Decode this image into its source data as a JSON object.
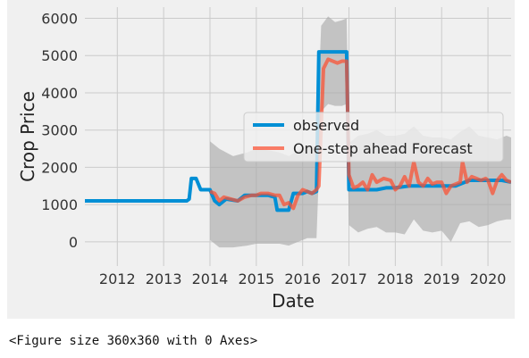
{
  "caption": "<Figure size 360x360 with 0 Axes>",
  "chart_data": {
    "type": "line",
    "title": "",
    "xlabel": "Date",
    "ylabel": "Crop Price",
    "xlim": [
      2011.3,
      2020.5
    ],
    "ylim": [
      -650,
      6300
    ],
    "x_ticks": [
      2012,
      2013,
      2014,
      2015,
      2016,
      2017,
      2018,
      2019,
      2020
    ],
    "x_tick_labels": [
      "2012",
      "2013",
      "2014",
      "2015",
      "2016",
      "2017",
      "2018",
      "2019",
      "2020"
    ],
    "y_ticks": [
      0,
      1000,
      2000,
      3000,
      4000,
      5000,
      6000
    ],
    "y_tick_labels": [
      "0",
      "1000",
      "2000",
      "3000",
      "4000",
      "5000",
      "6000"
    ],
    "grid": true,
    "legend_position": "center-right",
    "colors": {
      "observed": "#008fd5",
      "forecast": "#fc4f30",
      "confidence": "#aaaaaa",
      "background": "#f0f0f0",
      "grid": "#cbcbcb"
    },
    "series": [
      {
        "name": "observed",
        "x": [
          2011.3,
          2013.5,
          2013.55,
          2013.6,
          2013.7,
          2013.8,
          2014.0,
          2014.1,
          2014.2,
          2014.35,
          2014.6,
          2014.75,
          2015.0,
          2015.25,
          2015.4,
          2015.45,
          2015.5,
          2015.7,
          2015.8,
          2016.0,
          2016.1,
          2016.2,
          2016.3,
          2016.35,
          2016.6,
          2016.85,
          2016.95,
          2017.0,
          2017.3,
          2017.6,
          2017.8,
          2018.0,
          2018.3,
          2018.6,
          2019.0,
          2019.3,
          2019.6,
          2020.0,
          2020.3,
          2020.5
        ],
        "y": [
          1100,
          1100,
          1150,
          1700,
          1700,
          1400,
          1400,
          1100,
          1000,
          1150,
          1100,
          1250,
          1250,
          1250,
          1200,
          850,
          850,
          850,
          1300,
          1300,
          1350,
          1300,
          1350,
          5100,
          5100,
          5100,
          5100,
          1400,
          1400,
          1400,
          1450,
          1450,
          1500,
          1500,
          1500,
          1500,
          1650,
          1650,
          1650,
          1600
        ]
      },
      {
        "name": "One-step ahead Forecast",
        "x": [
          2014.0,
          2014.1,
          2014.2,
          2014.3,
          2014.45,
          2014.6,
          2014.75,
          2014.9,
          2015.0,
          2015.1,
          2015.25,
          2015.4,
          2015.5,
          2015.6,
          2015.7,
          2015.8,
          2015.9,
          2016.0,
          2016.1,
          2016.2,
          2016.3,
          2016.35,
          2016.45,
          2016.55,
          2016.65,
          2016.75,
          2016.85,
          2016.95,
          2017.0,
          2017.1,
          2017.2,
          2017.3,
          2017.4,
          2017.5,
          2017.6,
          2017.75,
          2017.9,
          2018.0,
          2018.1,
          2018.2,
          2018.3,
          2018.4,
          2018.5,
          2018.6,
          2018.7,
          2018.8,
          2018.9,
          2019.0,
          2019.1,
          2019.2,
          2019.3,
          2019.4,
          2019.45,
          2019.55,
          2019.65,
          2019.75,
          2019.85,
          2019.95,
          2020.0,
          2020.1,
          2020.2,
          2020.3,
          2020.4,
          2020.5
        ],
        "y": [
          1350,
          1300,
          1100,
          1200,
          1150,
          1100,
          1200,
          1250,
          1250,
          1300,
          1300,
          1250,
          1250,
          1000,
          1050,
          900,
          1250,
          1400,
          1350,
          1300,
          1400,
          1500,
          4650,
          4900,
          4850,
          4800,
          4850,
          4850,
          1800,
          1450,
          1500,
          1600,
          1400,
          1800,
          1600,
          1700,
          1650,
          1400,
          1500,
          1750,
          1500,
          2150,
          1600,
          1500,
          1700,
          1550,
          1600,
          1600,
          1300,
          1500,
          1550,
          1600,
          2150,
          1600,
          1750,
          1700,
          1650,
          1700,
          1650,
          1300,
          1650,
          1800,
          1650,
          1600
        ]
      }
    ],
    "confidence_band": {
      "x": [
        2014.0,
        2014.2,
        2014.5,
        2014.8,
        2015.0,
        2015.3,
        2015.5,
        2015.7,
        2015.9,
        2016.1,
        2016.3,
        2016.4,
        2016.55,
        2016.7,
        2016.85,
        2016.95,
        2017.0,
        2017.2,
        2017.4,
        2017.6,
        2017.8,
        2018.0,
        2018.2,
        2018.4,
        2018.6,
        2018.8,
        2019.0,
        2019.2,
        2019.4,
        2019.6,
        2019.8,
        2020.0,
        2020.2,
        2020.4,
        2020.5
      ],
      "upper": [
        2700,
        2500,
        2300,
        2400,
        2500,
        2450,
        2400,
        2300,
        2450,
        2600,
        2550,
        5800,
        6050,
        5900,
        5950,
        6000,
        2650,
        2850,
        2900,
        3000,
        2850,
        2850,
        2900,
        3100,
        2850,
        2800,
        2800,
        2750,
        2950,
        3100,
        2850,
        2800,
        2750,
        2850,
        2800
      ],
      "lower": [
        50,
        -150,
        -150,
        -100,
        -50,
        -50,
        -50,
        -100,
        0,
        100,
        100,
        3500,
        3700,
        3650,
        3650,
        3700,
        450,
        250,
        350,
        400,
        250,
        250,
        200,
        600,
        300,
        250,
        300,
        0,
        500,
        550,
        400,
        450,
        550,
        600,
        600
      ]
    }
  }
}
